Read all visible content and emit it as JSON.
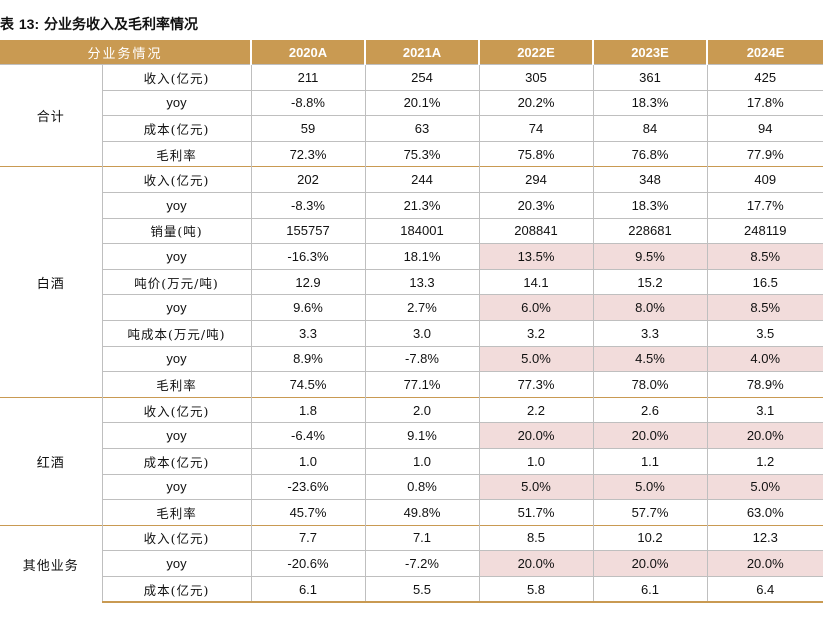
{
  "title": {
    "prefix": "表",
    "number": "13:",
    "text": "分业务收入及毛利率情况"
  },
  "header": {
    "segment_col": "分业务情况",
    "years": [
      "2020A",
      "2021A",
      "2022E",
      "2023E",
      "2024E"
    ]
  },
  "highlight_color": "#f2dcdb",
  "header_color": "#c99a52",
  "groups": [
    {
      "segment": "合计",
      "rows": [
        {
          "metric": "收入(亿元)",
          "values": [
            "211",
            "254",
            "305",
            "361",
            "425"
          ],
          "highlight": [
            false,
            false,
            false,
            false,
            false
          ]
        },
        {
          "metric": "yoy",
          "values": [
            "-8.8%",
            "20.1%",
            "20.2%",
            "18.3%",
            "17.8%"
          ],
          "highlight": [
            false,
            false,
            false,
            false,
            false
          ]
        },
        {
          "metric": "成本(亿元)",
          "values": [
            "59",
            "63",
            "74",
            "84",
            "94"
          ],
          "highlight": [
            false,
            false,
            false,
            false,
            false
          ]
        },
        {
          "metric": "毛利率",
          "values": [
            "72.3%",
            "75.3%",
            "75.8%",
            "76.8%",
            "77.9%"
          ],
          "highlight": [
            false,
            false,
            false,
            false,
            false
          ]
        }
      ]
    },
    {
      "segment": "白酒",
      "rows": [
        {
          "metric": "收入(亿元)",
          "values": [
            "202",
            "244",
            "294",
            "348",
            "409"
          ],
          "highlight": [
            false,
            false,
            false,
            false,
            false
          ]
        },
        {
          "metric": "yoy",
          "values": [
            "-8.3%",
            "21.3%",
            "20.3%",
            "18.3%",
            "17.7%"
          ],
          "highlight": [
            false,
            false,
            false,
            false,
            false
          ]
        },
        {
          "metric": "销量(吨)",
          "values": [
            "155757",
            "184001",
            "208841",
            "228681",
            "248119"
          ],
          "highlight": [
            false,
            false,
            false,
            false,
            false
          ]
        },
        {
          "metric": "yoy",
          "values": [
            "-16.3%",
            "18.1%",
            "13.5%",
            "9.5%",
            "8.5%"
          ],
          "highlight": [
            false,
            false,
            true,
            true,
            true
          ]
        },
        {
          "metric": "吨价(万元/吨)",
          "values": [
            "12.9",
            "13.3",
            "14.1",
            "15.2",
            "16.5"
          ],
          "highlight": [
            false,
            false,
            false,
            false,
            false
          ]
        },
        {
          "metric": "yoy",
          "values": [
            "9.6%",
            "2.7%",
            "6.0%",
            "8.0%",
            "8.5%"
          ],
          "highlight": [
            false,
            false,
            true,
            true,
            true
          ]
        },
        {
          "metric": "吨成本(万元/吨)",
          "values": [
            "3.3",
            "3.0",
            "3.2",
            "3.3",
            "3.5"
          ],
          "highlight": [
            false,
            false,
            false,
            false,
            false
          ]
        },
        {
          "metric": "yoy",
          "values": [
            "8.9%",
            "-7.8%",
            "5.0%",
            "4.5%",
            "4.0%"
          ],
          "highlight": [
            false,
            false,
            true,
            true,
            true
          ]
        },
        {
          "metric": "毛利率",
          "values": [
            "74.5%",
            "77.1%",
            "77.3%",
            "78.0%",
            "78.9%"
          ],
          "highlight": [
            false,
            false,
            false,
            false,
            false
          ]
        }
      ]
    },
    {
      "segment": "红酒",
      "rows": [
        {
          "metric": "收入(亿元)",
          "values": [
            "1.8",
            "2.0",
            "2.2",
            "2.6",
            "3.1"
          ],
          "highlight": [
            false,
            false,
            false,
            false,
            false
          ]
        },
        {
          "metric": "yoy",
          "values": [
            "-6.4%",
            "9.1%",
            "20.0%",
            "20.0%",
            "20.0%"
          ],
          "highlight": [
            false,
            false,
            true,
            true,
            true
          ]
        },
        {
          "metric": "成本(亿元)",
          "values": [
            "1.0",
            "1.0",
            "1.0",
            "1.1",
            "1.2"
          ],
          "highlight": [
            false,
            false,
            false,
            false,
            false
          ]
        },
        {
          "metric": "yoy",
          "values": [
            "-23.6%",
            "0.8%",
            "5.0%",
            "5.0%",
            "5.0%"
          ],
          "highlight": [
            false,
            false,
            true,
            true,
            true
          ]
        },
        {
          "metric": "毛利率",
          "values": [
            "45.7%",
            "49.8%",
            "51.7%",
            "57.7%",
            "63.0%"
          ],
          "highlight": [
            false,
            false,
            false,
            false,
            false
          ]
        }
      ]
    },
    {
      "segment": "其他业务",
      "rows": [
        {
          "metric": "收入(亿元)",
          "values": [
            "7.7",
            "7.1",
            "8.5",
            "10.2",
            "12.3"
          ],
          "highlight": [
            false,
            false,
            false,
            false,
            false
          ]
        },
        {
          "metric": "yoy",
          "values": [
            "-20.6%",
            "-7.2%",
            "20.0%",
            "20.0%",
            "20.0%"
          ],
          "highlight": [
            false,
            false,
            true,
            true,
            true
          ]
        },
        {
          "metric": "成本(亿元)",
          "values": [
            "6.1",
            "5.5",
            "5.8",
            "6.1",
            "6.4"
          ],
          "highlight": [
            false,
            false,
            false,
            false,
            false
          ]
        }
      ]
    }
  ]
}
